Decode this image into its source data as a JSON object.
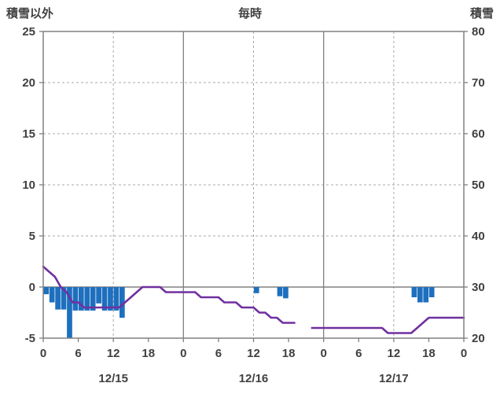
{
  "header": {
    "left_label": "積雪以外",
    "title": "毎時",
    "right_label": "積雪"
  },
  "chart_data": {
    "type": "bar",
    "title": "毎時",
    "x_max": 72,
    "x_ticks": [
      {
        "h": 0,
        "label": "0"
      },
      {
        "h": 6,
        "label": "6"
      },
      {
        "h": 12,
        "label": "12"
      },
      {
        "h": 18,
        "label": "18"
      },
      {
        "h": 24,
        "label": "0"
      },
      {
        "h": 30,
        "label": "6"
      },
      {
        "h": 36,
        "label": "12"
      },
      {
        "h": 42,
        "label": "18"
      },
      {
        "h": 48,
        "label": "0"
      },
      {
        "h": 54,
        "label": "6"
      },
      {
        "h": 60,
        "label": "12"
      },
      {
        "h": 66,
        "label": "18"
      },
      {
        "h": 72,
        "label": "0"
      }
    ],
    "day_labels": [
      "12/15",
      "12/16",
      "12/17"
    ],
    "left_axis": {
      "label": "積雪以外",
      "min": -5,
      "max": 25,
      "ticks": [
        25,
        20,
        15,
        10,
        5,
        0,
        -5
      ]
    },
    "right_axis": {
      "label": "積雪",
      "min": 20,
      "max": 80,
      "ticks": [
        80,
        70,
        60,
        50,
        40,
        30,
        20
      ]
    },
    "grid": {
      "h_dashed_at_left_values": [
        20,
        15,
        10,
        5
      ],
      "v_dashed_at_hours": [
        12,
        36,
        60
      ],
      "v_solid_at_hours": [
        24,
        48
      ],
      "zero_line_left_value": 0
    },
    "series": [
      {
        "name": "積雪以外",
        "type": "bar",
        "axis": "left",
        "color": "#1E6FBE",
        "values": [
          -0.7,
          -1.5,
          -2.2,
          -2.2,
          -5,
          -2.3,
          -2.3,
          -2.3,
          -2.3,
          -1.6,
          -2.3,
          -2.3,
          -2.3,
          -3,
          null,
          null,
          null,
          null,
          null,
          null,
          null,
          null,
          null,
          null,
          null,
          null,
          null,
          null,
          null,
          null,
          null,
          null,
          null,
          null,
          null,
          null,
          -0.6,
          null,
          null,
          null,
          -0.9,
          -1.1,
          null,
          null,
          null,
          null,
          null,
          null,
          null,
          null,
          null,
          null,
          null,
          null,
          null,
          null,
          null,
          null,
          null,
          null,
          null,
          null,
          null,
          -1,
          -1.5,
          -1.5,
          -1,
          null,
          null,
          null,
          null,
          null,
          null
        ]
      },
      {
        "name": "積雪",
        "type": "line",
        "axis": "right",
        "color": "#7030A0",
        "values": [
          34,
          33,
          32,
          30,
          29,
          27,
          27,
          26,
          26,
          26,
          26,
          26,
          26,
          26,
          27,
          28,
          29,
          30,
          30,
          30,
          30,
          29,
          29,
          29,
          29,
          29,
          29,
          28,
          28,
          28,
          28,
          27,
          27,
          27,
          26,
          26,
          26,
          25,
          25,
          24,
          24,
          23,
          23,
          23,
          null,
          null,
          22,
          22,
          22,
          22,
          22,
          22,
          22,
          22,
          22,
          22,
          22,
          22,
          22,
          21,
          21,
          21,
          21,
          21,
          22,
          23,
          24,
          24,
          24,
          24,
          24,
          24,
          24
        ]
      }
    ],
    "colors": {
      "bar": "#1E6FBE",
      "line": "#7030A0",
      "grid": "#A8A8A8",
      "axis": "#808080",
      "text": "#404040",
      "background": "#FFFFFF"
    }
  }
}
